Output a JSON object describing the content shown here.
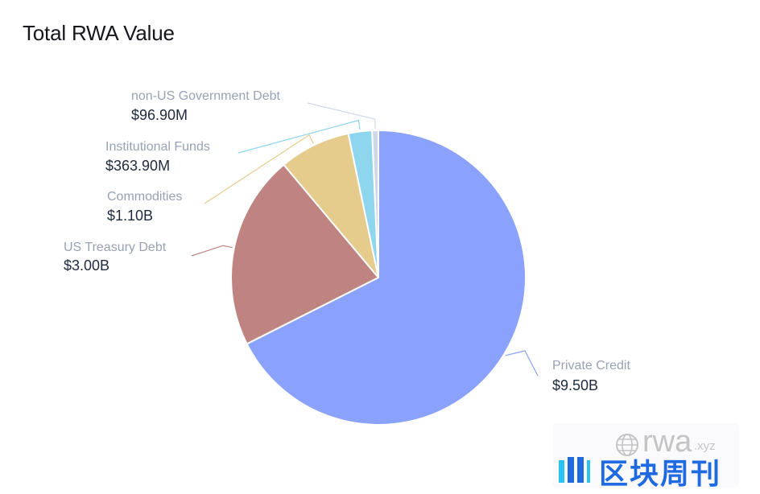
{
  "title": "Total RWA Value",
  "chart_data": {
    "type": "pie",
    "title": "Total RWA Value",
    "start_angle": "top, clockwise",
    "slices": [
      {
        "label": "Private Credit",
        "value": 9.5,
        "display": "$9.50B",
        "color": "#8aa2fc"
      },
      {
        "label": "US Treasury Debt",
        "value": 3.0,
        "display": "$3.00B",
        "color": "#bf8482"
      },
      {
        "label": "Commodities",
        "value": 1.1,
        "display": "$1.10B",
        "color": "#e5cb8c"
      },
      {
        "label": "Institutional Funds",
        "value": 0.3639,
        "display": "$363.90M",
        "color": "#8ed5ee"
      },
      {
        "label": "non-US Government Debt",
        "value": 0.0969,
        "display": "$96.90M",
        "color": "#cfd8e8"
      }
    ],
    "unit": "USD billions"
  },
  "watermark": {
    "brand": "rwa",
    "domain": ".xyz",
    "chinese": "区块周刊"
  }
}
